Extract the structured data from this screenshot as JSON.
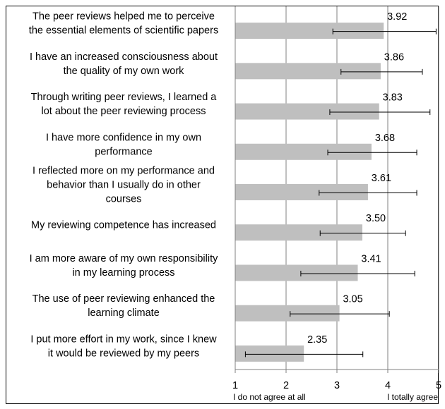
{
  "chart_data": {
    "type": "bar",
    "orientation": "horizontal",
    "categories": [
      [
        "The peer reviews helped me to perceive",
        "the essential elements of scientific papers"
      ],
      [
        "I have an increased consciousness about",
        "the quality of my own work"
      ],
      [
        "Through writing peer reviews, I learned a",
        "lot about the peer reviewing process"
      ],
      [
        "I have more confidence in my own",
        "performance"
      ],
      [
        "I reflected more on my performance and",
        "behavior than I usually do in other",
        "courses"
      ],
      [
        "My reviewing competence has increased"
      ],
      [
        "I am more aware of my own responsibility",
        "in my learning process"
      ],
      [
        "The use of peer reviewing enhanced the",
        "learning climate"
      ],
      [
        "I put more effort in my work, since I knew",
        "it would be reviewed by my peers"
      ]
    ],
    "values": [
      3.92,
      3.86,
      3.83,
      3.68,
      3.61,
      3.5,
      3.41,
      3.05,
      2.35
    ],
    "value_labels": [
      "3.92",
      "3.86",
      "3.83",
      "3.68",
      "3.61",
      "3.50",
      "3.41",
      "3.05",
      "2.35"
    ],
    "error_bars": [
      [
        2.92,
        4.95
      ],
      [
        3.08,
        4.68
      ],
      [
        2.86,
        4.83
      ],
      [
        2.82,
        4.57
      ],
      [
        2.65,
        4.57
      ],
      [
        2.67,
        4.35
      ],
      [
        2.29,
        4.53
      ],
      [
        2.08,
        4.03
      ],
      [
        1.2,
        3.51
      ]
    ],
    "xlim": [
      1,
      5
    ],
    "x_ticks": [
      "1",
      "2",
      "3",
      "4",
      "5"
    ],
    "x_tick_values": [
      1,
      2,
      3,
      4,
      5
    ],
    "x_notes": {
      "left": "I do not agree at all",
      "right": "I totally agree"
    },
    "grid": true,
    "bar_color": "#bfbfbf",
    "grid_color": "#808080",
    "axis_color": "#808080"
  }
}
